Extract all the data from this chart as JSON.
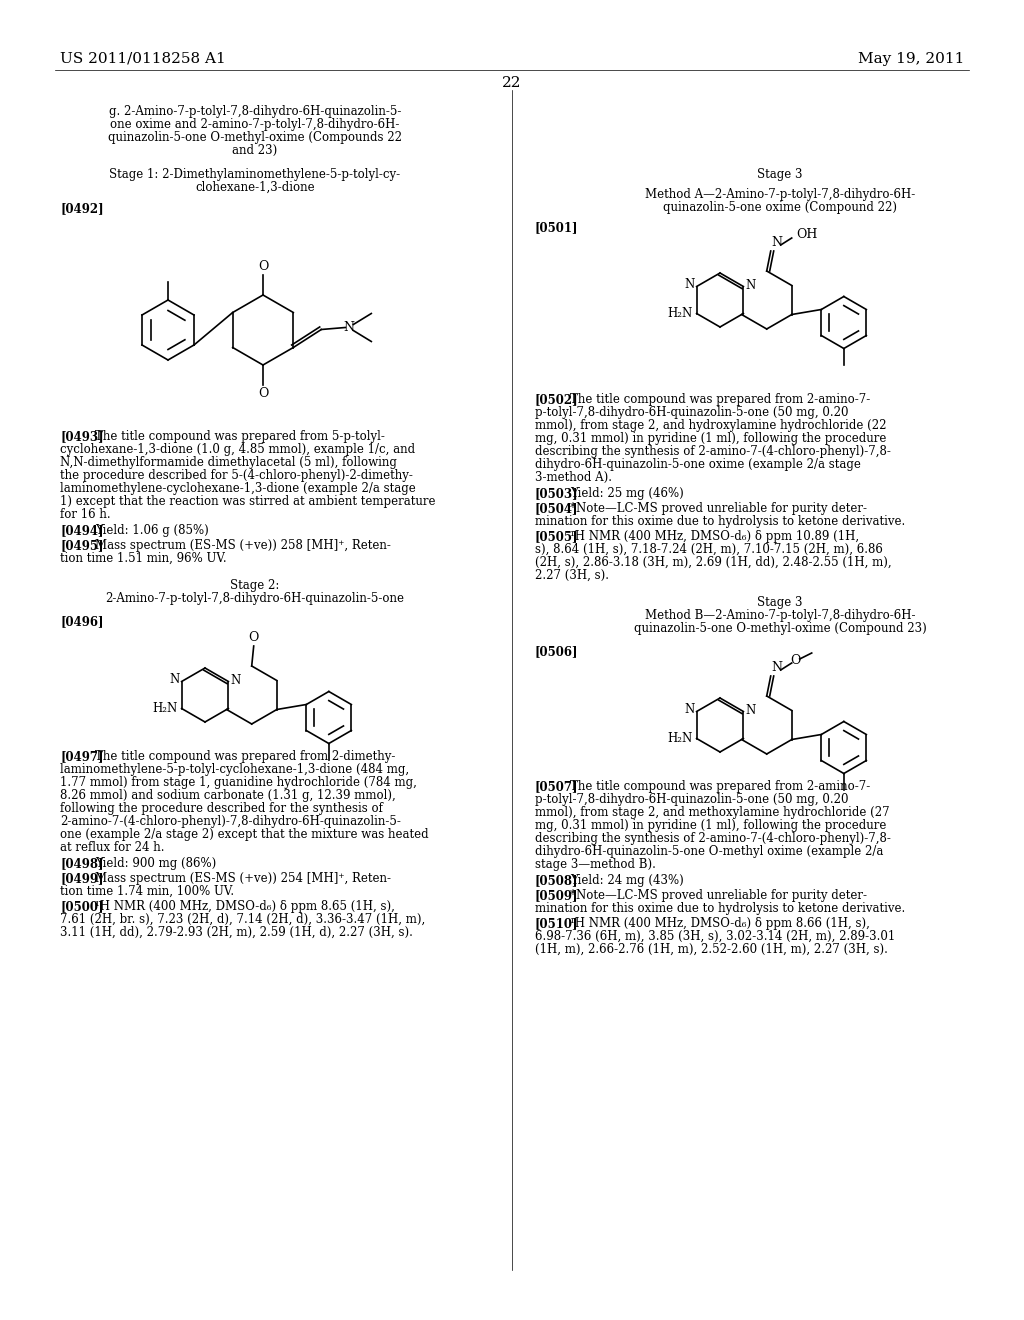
{
  "background_color": "#ffffff",
  "header_left": "US 2011/0118258 A1",
  "header_right": "May 19, 2011",
  "page_number": "22"
}
